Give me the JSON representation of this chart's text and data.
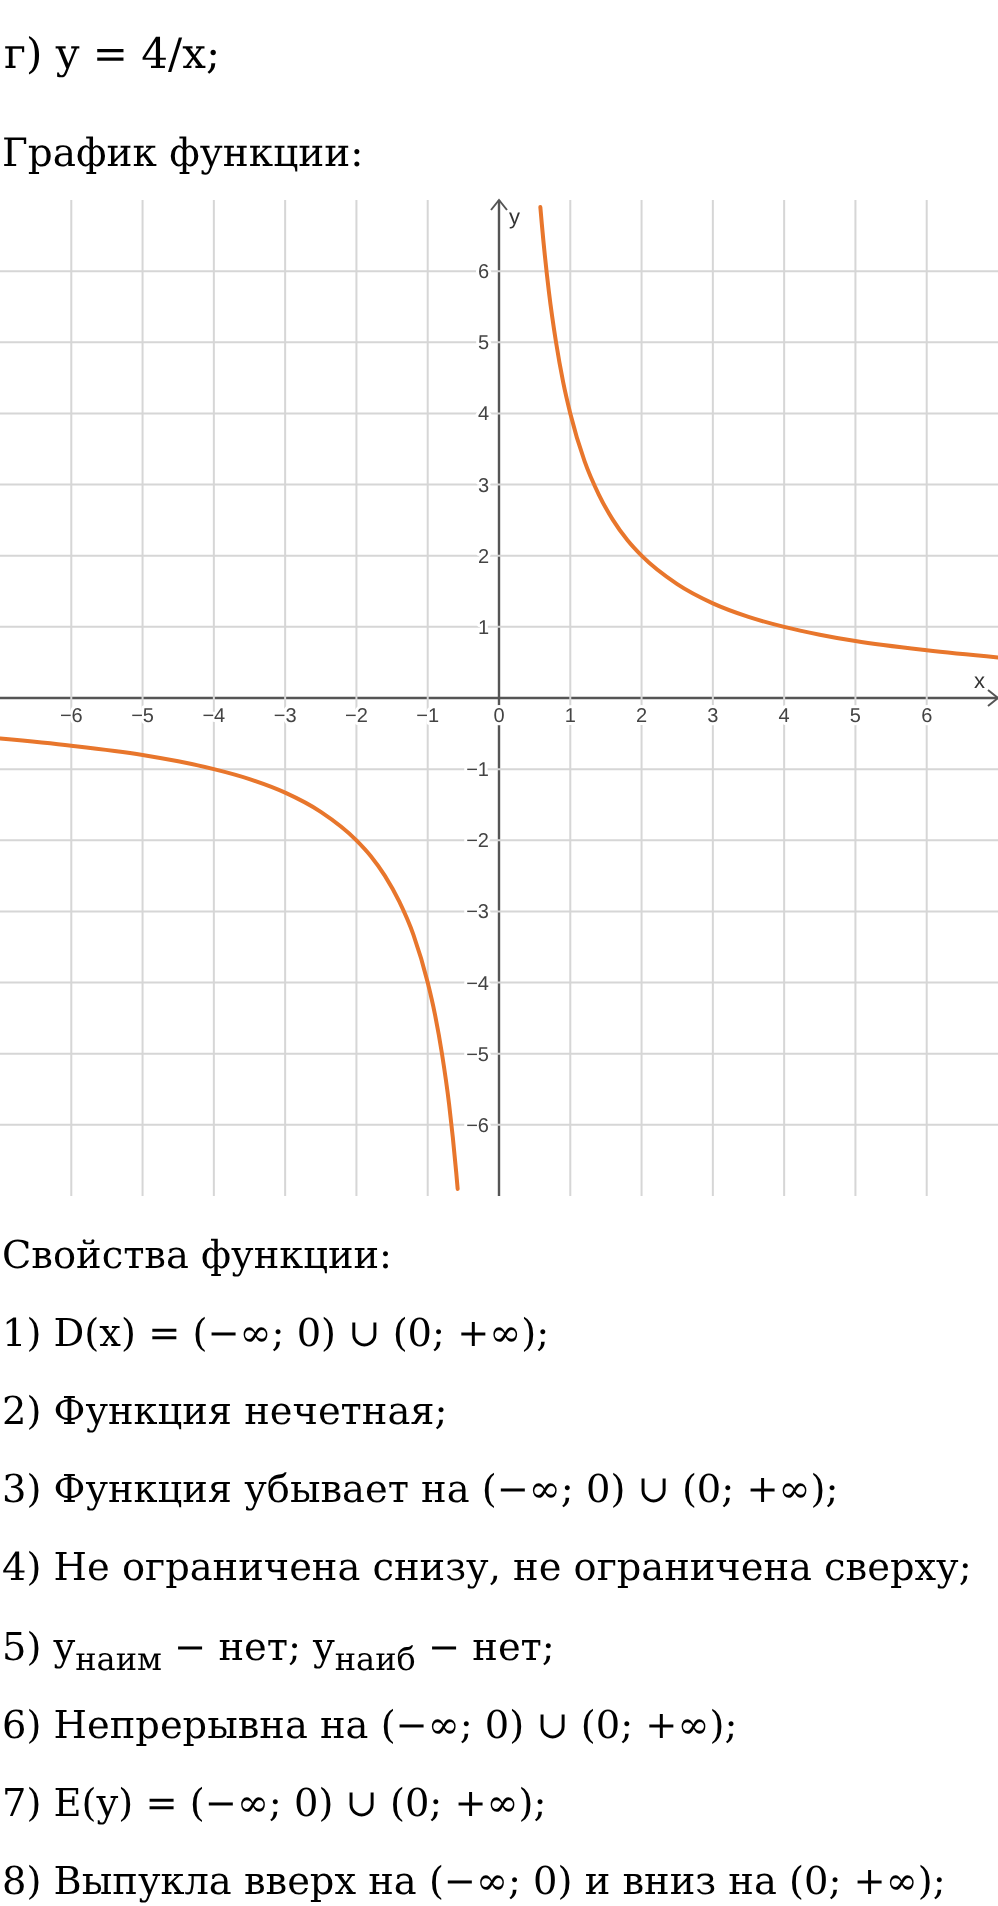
{
  "chart_data": {
    "type": "line",
    "title": "г) y = 4/x;",
    "subtitle": "График функции:",
    "xlabel": "x",
    "ylabel": "y",
    "x": [
      -7,
      -6,
      -5,
      -4.5,
      -4,
      -3.5,
      -3,
      -2.5,
      -2,
      -1.8,
      -1.6,
      -1.4,
      -1.2,
      -1,
      -0.9,
      -0.8,
      -0.7,
      -0.6,
      -0.58,
      0,
      0.58,
      0.6,
      0.7,
      0.8,
      0.9,
      1,
      1.2,
      1.4,
      1.6,
      1.8,
      2,
      2.5,
      3,
      3.5,
      4,
      4.5,
      5,
      6,
      7
    ],
    "series": [
      {
        "color": "#e8762c",
        "values": [
          -0.57,
          -0.67,
          -0.8,
          -0.89,
          -1,
          -1.14,
          -1.33,
          -1.6,
          -2,
          -2.22,
          -2.5,
          -2.86,
          -3.33,
          -4,
          -4.44,
          -5,
          -5.71,
          -6.67,
          -6.9,
          null,
          6.9,
          6.67,
          5.71,
          5,
          4.44,
          4,
          3.33,
          2.86,
          2.5,
          2.22,
          2,
          1.6,
          1.33,
          1.14,
          1,
          0.89,
          0.8,
          0.67,
          0.57
        ]
      }
    ],
    "xlim": [
      -7,
      7
    ],
    "ylim": [
      -7,
      7
    ],
    "xticks": [
      {
        "value": -6,
        "label": "−6"
      },
      {
        "value": -5,
        "label": "−5"
      },
      {
        "value": -4,
        "label": "−4"
      },
      {
        "value": -3,
        "label": "−3"
      },
      {
        "value": -2,
        "label": "−2"
      },
      {
        "value": -1,
        "label": "−1"
      },
      0,
      1,
      2,
      3,
      4,
      5,
      6
    ],
    "yticks": [
      {
        "value": -6,
        "label": "−6"
      },
      {
        "value": -5,
        "label": "−5"
      },
      {
        "value": -4,
        "label": "−4"
      },
      {
        "value": -3,
        "label": "−3"
      },
      {
        "value": -2,
        "label": "−2"
      },
      {
        "value": -1,
        "label": "−1"
      },
      1,
      2,
      3,
      4,
      5,
      6
    ],
    "grid": true,
    "marker": "none",
    "line_style": "solid",
    "annotations": [
      "Свойства функции:",
      "1) D(x) = (−∞; 0) ∪ (0; +∞);",
      "2) Функция нечетная;",
      "3) Функция убывает на (−∞; 0) ∪ (0; +∞);",
      "4) Не ограничена снизу, не ограничена сверху;",
      "5) y$_{наим}$ − нет; y$_{наиб}$ − нет;",
      "6) Непрерывна на (−∞; 0) ∪ (0; +∞);",
      "7) E(y) = (−∞; 0) ∪ (0; +∞);",
      "8) Выпукла вверх на (−∞; 0) и вниз на (0; +∞);"
    ]
  }
}
